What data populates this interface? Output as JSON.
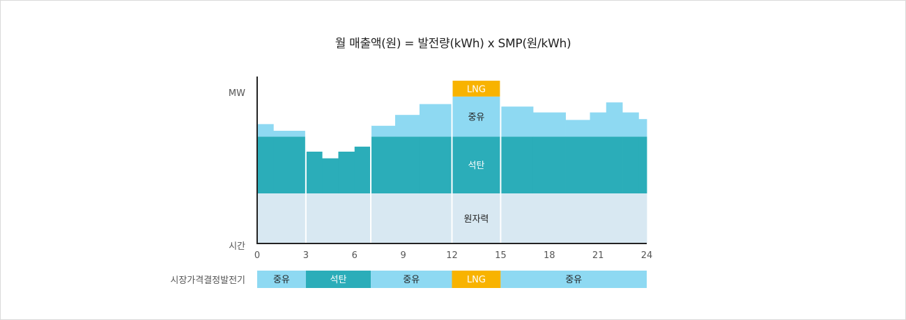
{
  "title": "월 매출액(원) = 발전량(kWh) x SMP(원/kWh)",
  "colors": {
    "nuclear": "#d8e8f2",
    "coal": "#2badb9",
    "oil": "#8ed9f2",
    "lng": "#f8b300",
    "axis": "#222222",
    "divider": "#ffffff"
  },
  "chart_data": {
    "type": "area",
    "title": "월 매출액(원) = 발전량(kWh) x SMP(원/kWh)",
    "ylabel": "MW",
    "xlabel": "시간",
    "x_ticks": [
      0,
      3,
      6,
      9,
      12,
      15,
      18,
      21,
      24
    ],
    "xlim": [
      0,
      24
    ],
    "ylim": [
      0,
      10
    ],
    "step_x": [
      0,
      1,
      3,
      4,
      5,
      6,
      7,
      8.5,
      10,
      12,
      15,
      17,
      19,
      20.5,
      21.5,
      22.5,
      23.5,
      24
    ],
    "layers": [
      {
        "name": "원자력",
        "label": "원자력",
        "color": "#d8e8f2",
        "values": [
          3.0,
          3.0,
          3.0,
          3.0,
          3.0,
          3.0,
          3.0,
          3.0,
          3.0,
          3.0,
          3.0,
          3.0,
          3.0,
          3.0,
          3.0,
          3.0,
          3.0
        ]
      },
      {
        "name": "석탄",
        "label": "석탄",
        "color": "#2badb9",
        "values": [
          3.4,
          3.4,
          2.5,
          2.1,
          2.5,
          2.8,
          3.4,
          3.4,
          3.4,
          3.4,
          3.4,
          3.4,
          3.4,
          3.4,
          3.4,
          3.4,
          3.4
        ]
      },
      {
        "name": "중유",
        "label": "중유",
        "color": "#8ed9f2",
        "values": [
          0.75,
          0.35,
          0,
          0,
          0,
          0,
          0.65,
          1.3,
          1.95,
          2.4,
          1.8,
          1.45,
          1.0,
          1.45,
          2.05,
          1.45,
          1.05
        ]
      },
      {
        "name": "LNG",
        "label": "LNG",
        "color": "#f8b300",
        "values": [
          0,
          0,
          0,
          0,
          0,
          0,
          0,
          0,
          0,
          0.95,
          0,
          0,
          0,
          0,
          0,
          0,
          0
        ]
      }
    ],
    "dividers": [
      3,
      7,
      12,
      15
    ],
    "market_price_setter": {
      "label": "시장가격결정발전기",
      "segments": [
        {
          "from": 0,
          "to": 3,
          "label": "중유",
          "color": "#8ed9f2"
        },
        {
          "from": 3,
          "to": 7,
          "label": "석탄",
          "color": "#2badb9"
        },
        {
          "from": 7,
          "to": 12,
          "label": "중유",
          "color": "#8ed9f2"
        },
        {
          "from": 12,
          "to": 15,
          "label": "LNG",
          "color": "#f8b300"
        },
        {
          "from": 15,
          "to": 24,
          "label": "중유",
          "color": "#8ed9f2"
        }
      ]
    }
  }
}
